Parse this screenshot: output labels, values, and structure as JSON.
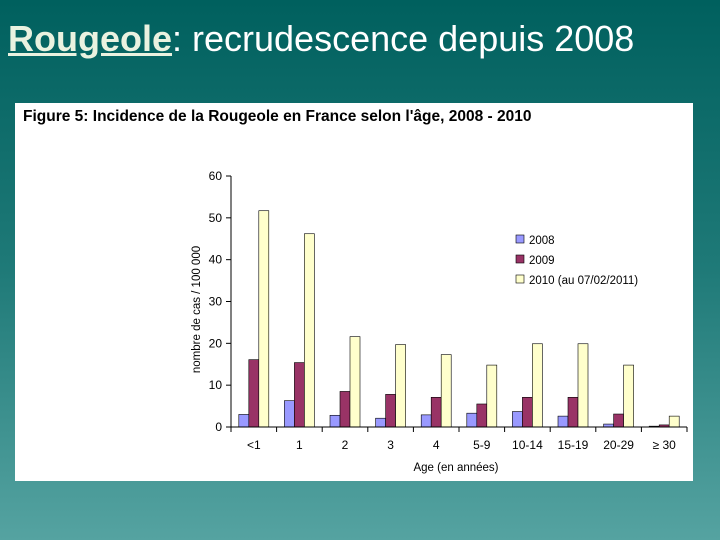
{
  "slide": {
    "title_keyword": "Rougeole",
    "title_rest": ": recrudescence depuis 2008"
  },
  "chart_data": {
    "type": "bar",
    "title": "Figure 5: Incidence de la Rougeole en France selon l'âge, 2008 - 2010",
    "xlabel": "Age (en années)",
    "ylabel": "nombre de cas / 100 000",
    "ylim": [
      0,
      60
    ],
    "yticks": [
      0,
      10,
      20,
      30,
      40,
      50,
      60
    ],
    "categories": [
      "<1",
      "1",
      "2",
      "3",
      "4",
      "5-9",
      "10-14",
      "15-19",
      "20-29",
      "≥ 30"
    ],
    "series": [
      {
        "name": "2008",
        "color": "#9999ff",
        "values": [
          3.0,
          6.3,
          2.8,
          2.1,
          2.9,
          3.3,
          3.7,
          2.6,
          0.7,
          0.2
        ]
      },
      {
        "name": "2009",
        "color": "#993366",
        "values": [
          16.1,
          15.4,
          8.5,
          7.8,
          7.1,
          5.5,
          7.1,
          7.1,
          3.1,
          0.5
        ]
      },
      {
        "name": "2010 (au 07/02/2011)",
        "color": "#ffffcc",
        "values": [
          51.7,
          46.2,
          21.6,
          19.7,
          17.3,
          14.8,
          19.9,
          19.9,
          14.8,
          2.6
        ]
      }
    ],
    "legend_position": "right",
    "grid": false
  }
}
